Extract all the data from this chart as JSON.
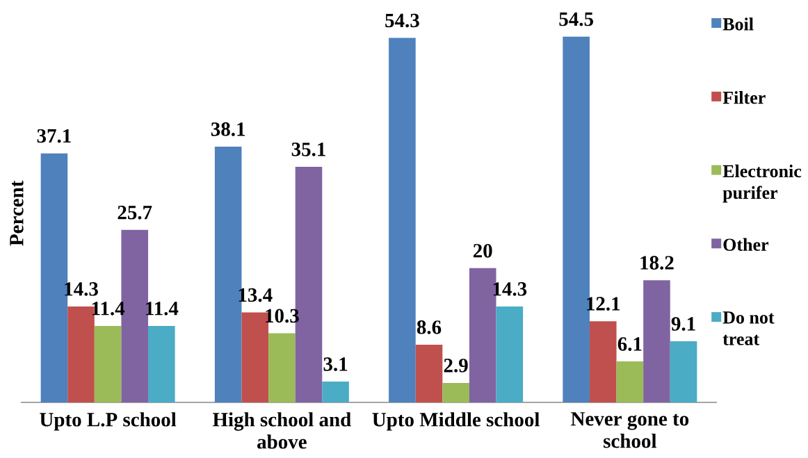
{
  "chart_data": {
    "type": "bar",
    "ylabel": "Percent",
    "categories": [
      "Upto L.P school",
      "High school and above",
      "Upto Middle school",
      "Never gone to school"
    ],
    "series": [
      {
        "name": "Boil",
        "color": "#4f81bd",
        "values": [
          37.1,
          38.1,
          54.3,
          54.5
        ]
      },
      {
        "name": "Filter",
        "color": "#c0504d",
        "values": [
          14.3,
          13.4,
          8.6,
          12.1
        ]
      },
      {
        "name": "Electronic purifer",
        "color": "#9bbb59",
        "values": [
          11.4,
          10.3,
          2.9,
          6.1
        ]
      },
      {
        "name": "Other",
        "color": "#8064a2",
        "values": [
          25.7,
          35.1,
          20,
          18.2
        ]
      },
      {
        "name": "Do not treat",
        "color": "#4bacc6",
        "values": [
          11.4,
          3.1,
          14.3,
          9.1
        ]
      }
    ],
    "data_labels": true,
    "legend": "right",
    "tick_labels": "x"
  }
}
